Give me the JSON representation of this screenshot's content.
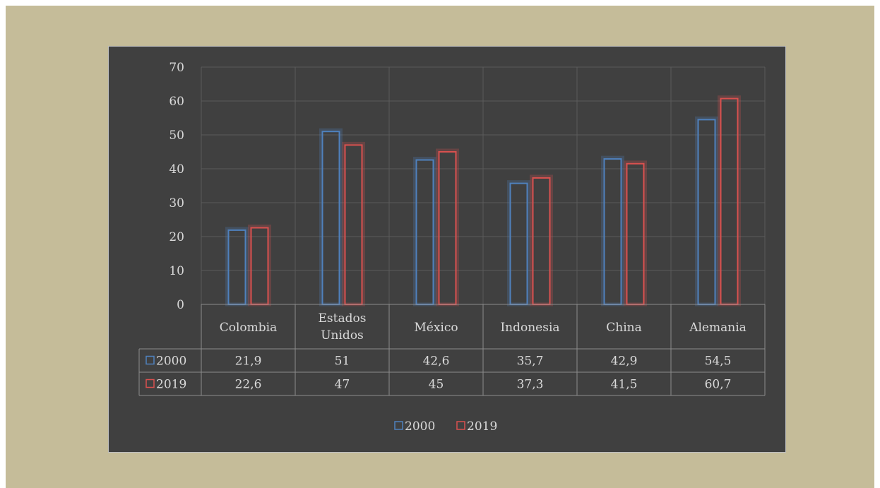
{
  "colors": {
    "background": "#c5bc99",
    "panel": "#404040",
    "gridline": "#5a5a5a",
    "table_border": "#8c8c8c",
    "text": "#d9d9d9",
    "series_2000": "#4f81bd",
    "series_2019": "#d9514f"
  },
  "chart_data": {
    "type": "bar",
    "title": "",
    "xlabel": "",
    "ylabel": "",
    "ylim": [
      0,
      70
    ],
    "yticks": [
      0,
      10,
      20,
      30,
      40,
      50,
      60,
      70
    ],
    "grid": true,
    "legend_position": "bottom",
    "categories": [
      "Colombia",
      "Estados Unidos",
      "México",
      "Indonesia",
      "China",
      "Alemania"
    ],
    "category_lines": [
      [
        "Colombia"
      ],
      [
        "Estados",
        "Unidos"
      ],
      [
        "México"
      ],
      [
        "Indonesia"
      ],
      [
        "China"
      ],
      [
        "Alemania"
      ]
    ],
    "series": [
      {
        "name": "2000",
        "values": [
          21.9,
          51,
          42.6,
          35.7,
          42.9,
          54.5
        ],
        "display": [
          "21,9",
          "51",
          "42,6",
          "35,7",
          "42,9",
          "54,5"
        ]
      },
      {
        "name": "2019",
        "values": [
          22.6,
          47,
          45,
          37.3,
          41.5,
          60.7
        ],
        "display": [
          "22,6",
          "47",
          "45",
          "37,3",
          "41,5",
          "60,7"
        ]
      }
    ],
    "data_table": true
  }
}
